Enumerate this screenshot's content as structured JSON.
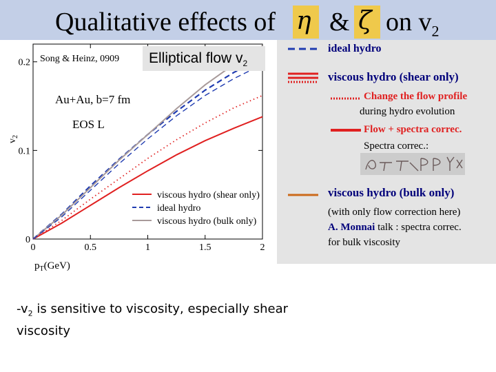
{
  "title": {
    "text": "Qualitative effects of",
    "eta": "η",
    "amp": "&",
    "zeta": "ζ",
    "on": "on v",
    "sub": "2"
  },
  "citation": "Song & Heinz, 0909",
  "elliptical_flow": {
    "label": "Elliptical flow v",
    "sub": "2"
  },
  "plot": {
    "y_label": "v",
    "y_sub": "2",
    "x_label": "pT(GeV)",
    "x_ticks": [
      "0",
      "0.5",
      "1",
      "1.5",
      "2"
    ],
    "y_ticks": [
      "0",
      "0.1",
      "0.2"
    ],
    "annot1": "Au+Au, b=7 fm",
    "annot2": "EOS L",
    "legend": [
      "viscous hydro (shear only)",
      "ideal hydro",
      "viscous hydro (bulk only)"
    ]
  },
  "chart_data": {
    "type": "line",
    "xlabel": "pT(GeV)",
    "ylabel": "v2",
    "xlim": [
      0,
      2
    ],
    "ylim": [
      0,
      0.22
    ],
    "series": [
      {
        "name": "viscous hydro (shear only)",
        "color": "#e02020",
        "style": "solid",
        "x": [
          0,
          0.25,
          0.5,
          0.75,
          1.0,
          1.25,
          1.5,
          1.75,
          2.0
        ],
        "y": [
          0,
          0.018,
          0.038,
          0.058,
          0.077,
          0.095,
          0.111,
          0.125,
          0.138
        ]
      },
      {
        "name": "ideal hydro",
        "color": "#1f3bb0",
        "style": "dashed",
        "x": [
          0,
          0.25,
          0.5,
          0.75,
          1.0,
          1.25,
          1.5,
          1.75,
          2.0
        ],
        "y": [
          0,
          0.028,
          0.06,
          0.09,
          0.118,
          0.144,
          0.168,
          0.188,
          0.204
        ]
      },
      {
        "name": "viscous hydro (bulk only)",
        "color": "#a89a9a",
        "style": "solid",
        "x": [
          0,
          0.25,
          0.5,
          0.75,
          1.0,
          1.25,
          1.5,
          1.75,
          2.0
        ],
        "y": [
          0,
          0.027,
          0.058,
          0.089,
          0.118,
          0.147,
          0.174,
          0.197,
          0.218
        ]
      },
      {
        "color": "#e02020",
        "style": "dotted",
        "x": [
          0,
          0.25,
          0.5,
          0.75,
          1.0,
          1.25,
          1.5,
          1.75,
          2.0
        ],
        "y": [
          0,
          0.021,
          0.045,
          0.068,
          0.091,
          0.112,
          0.131,
          0.148,
          0.162
        ]
      },
      {
        "color": "#1f3bb0",
        "style": "dashed-thin",
        "x": [
          0,
          0.25,
          0.5,
          0.75,
          1.0,
          1.25,
          1.5,
          1.75,
          2.0
        ],
        "y": [
          0,
          0.025,
          0.055,
          0.085,
          0.113,
          0.139,
          0.162,
          0.181,
          0.197
        ]
      }
    ]
  },
  "right_legend": {
    "ideal": "ideal hydro",
    "viscous_shear": "viscous hydro (shear only)",
    "change_flow_1": "Change the flow profile",
    "change_flow_2": "during hydro evolution",
    "flow_spectra": "Flow + spectra correc.",
    "spectra": "Spectra  correc.:",
    "bulk": "viscous hydro (bulk only)",
    "note1": "(with only flow correction here)",
    "note2_name": "A. Monnai",
    "note2_rest": " talk : spectra correc.",
    "note3": "for bulk viscosity",
    "colors": {
      "blue": "#1f3bb0",
      "red": "#e02020",
      "orange": "#cc6a1a",
      "navy": "#00007a"
    }
  },
  "bullet": {
    "prefix": "-v",
    "sub": "2",
    "rest": " is sensitive to viscosity, especially shear viscosity"
  }
}
